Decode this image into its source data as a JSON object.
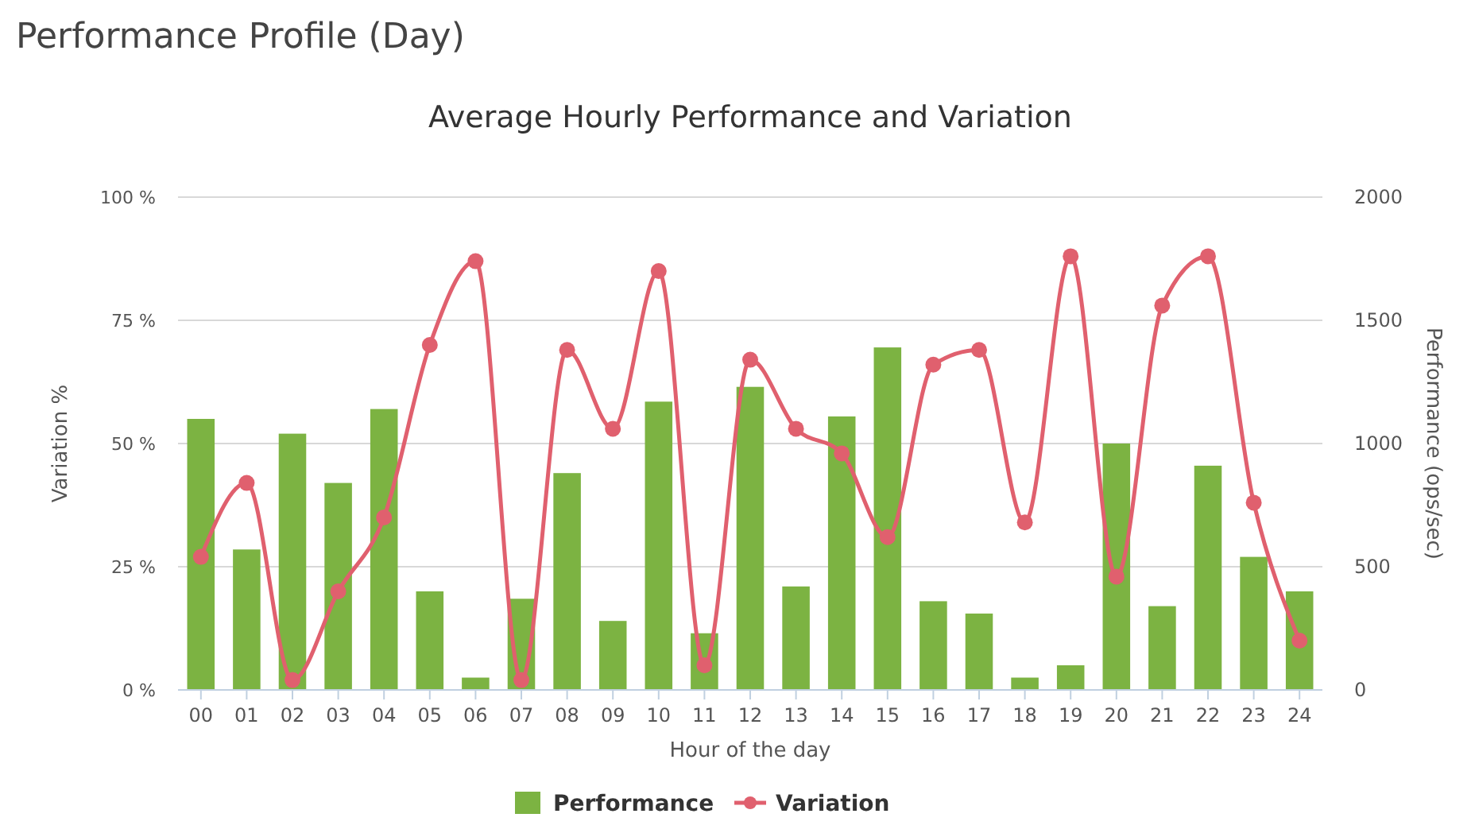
{
  "chart_data": {
    "type": "bar",
    "title": "Performance Profile (Day)",
    "subtitle": "Average Hourly Performance and Variation",
    "xlabel": "Hour of the day",
    "ylabel": "Variation %",
    "y2label": "Performance (ops/sec)",
    "categories": [
      "00",
      "01",
      "02",
      "03",
      "04",
      "05",
      "06",
      "07",
      "08",
      "09",
      "10",
      "11",
      "12",
      "13",
      "14",
      "15",
      "16",
      "17",
      "18",
      "19",
      "20",
      "21",
      "22",
      "23",
      "24"
    ],
    "series": [
      {
        "name": "Performance",
        "axis": "y2",
        "color": "#7cb342",
        "values": [
          1100,
          570,
          1040,
          840,
          1140,
          400,
          50,
          370,
          880,
          280,
          1170,
          230,
          1230,
          420,
          1110,
          1390,
          360,
          310,
          50,
          100,
          1000,
          340,
          910,
          540,
          400
        ]
      },
      {
        "name": "Variation",
        "type": "line",
        "axis": "y",
        "color": "#e0606e",
        "marker": "circle",
        "line_style": "solid",
        "values": [
          27,
          42,
          2,
          20,
          35,
          70,
          87,
          2,
          69,
          53,
          85,
          5,
          67,
          53,
          48,
          31,
          66,
          69,
          34,
          88,
          23,
          78,
          88,
          38,
          10
        ]
      }
    ],
    "ylim": [
      0,
      100
    ],
    "yticks": [
      {
        "value": 0,
        "label": "0 %"
      },
      {
        "value": 25,
        "label": "25 %"
      },
      {
        "value": 50,
        "label": "50 %"
      },
      {
        "value": 75,
        "label": "75 %"
      },
      {
        "value": 100,
        "label": "100 %"
      }
    ],
    "y2lim": [
      0,
      2000
    ],
    "y2ticks": [
      0,
      500,
      1000,
      1500,
      2000
    ],
    "grid": "y",
    "legend": "bottom"
  }
}
